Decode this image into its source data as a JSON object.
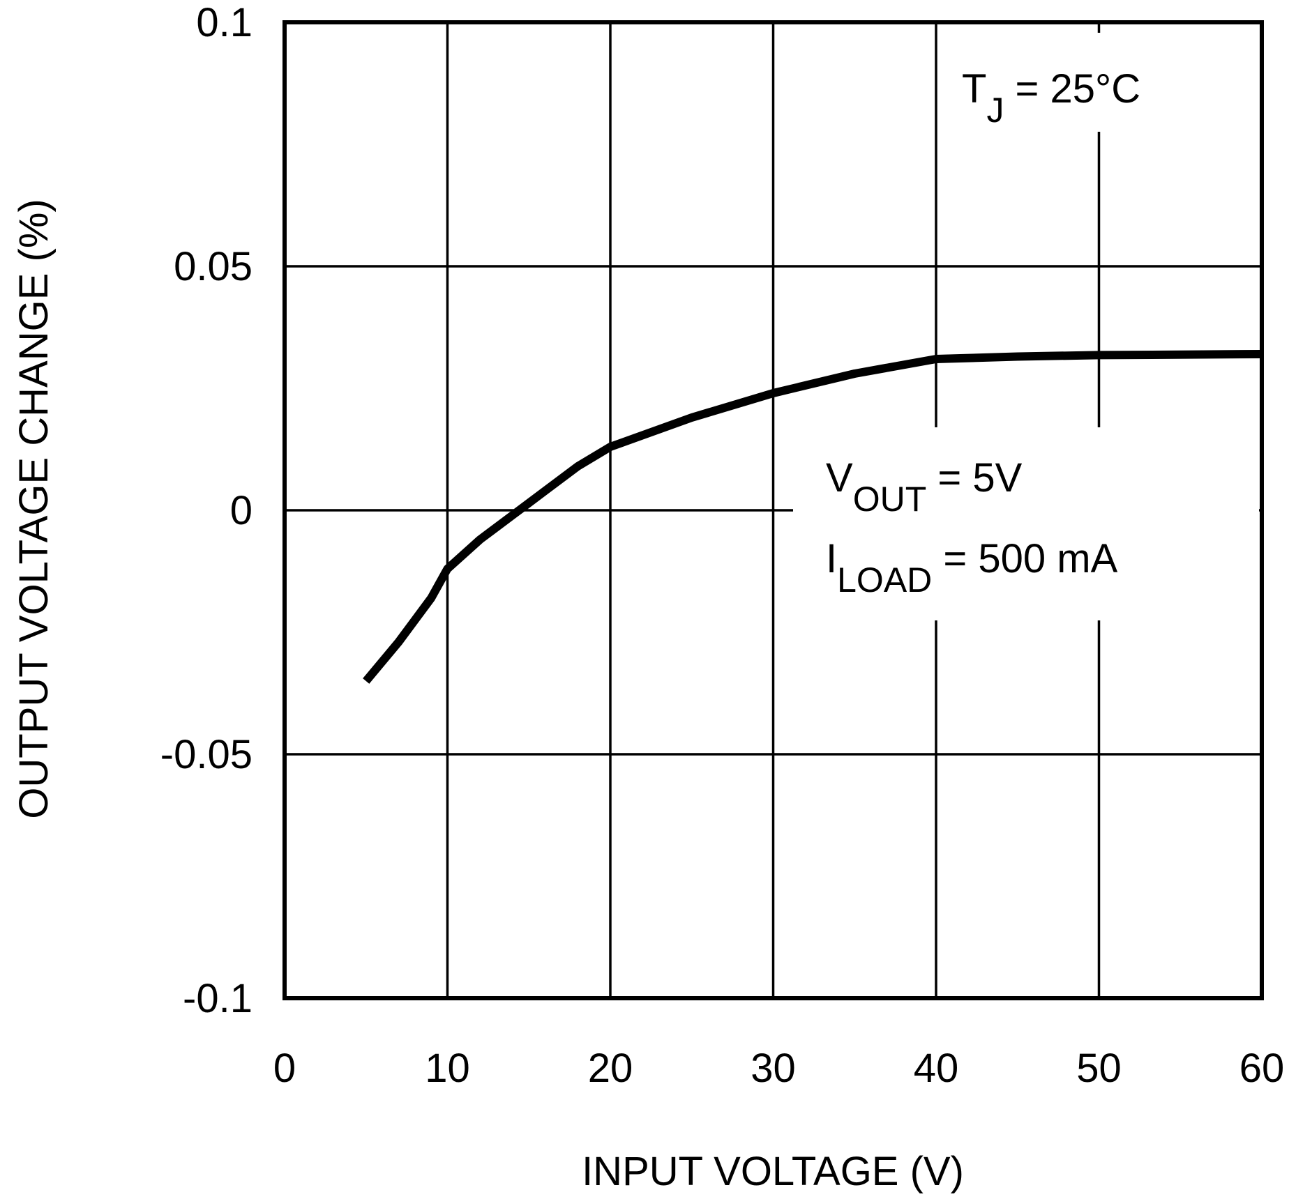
{
  "chart_data": {
    "type": "line",
    "x_label": "INPUT VOLTAGE (V)",
    "y_label": "OUTPUT VOLTAGE CHANGE (%)",
    "x": [
      5,
      7,
      9,
      10,
      12,
      14,
      16,
      18,
      20,
      25,
      30,
      35,
      40,
      45,
      50,
      60
    ],
    "series": [
      {
        "color": "#000000",
        "values": [
          -0.035,
          -0.027,
          -0.018,
          -0.012,
          -0.006,
          -0.001,
          0.004,
          0.009,
          0.013,
          0.019,
          0.024,
          0.028,
          0.031,
          0.0315,
          0.0318,
          0.032
        ]
      }
    ],
    "xlim": [
      0,
      60
    ],
    "xticks": [
      0,
      10,
      20,
      30,
      40,
      50,
      60
    ],
    "ylim": [
      -0.1,
      0.1
    ],
    "yticks": [
      -0.1,
      -0.05,
      0,
      0.05,
      0.1
    ],
    "grid": true,
    "annotations": [
      {
        "main": "T",
        "sub": "J",
        "after": " = 25°C"
      },
      {
        "main": "V",
        "sub": "OUT",
        "after": " = 5V"
      },
      {
        "main": "I",
        "sub": "LOAD",
        "after": " = 500 mA"
      }
    ]
  }
}
